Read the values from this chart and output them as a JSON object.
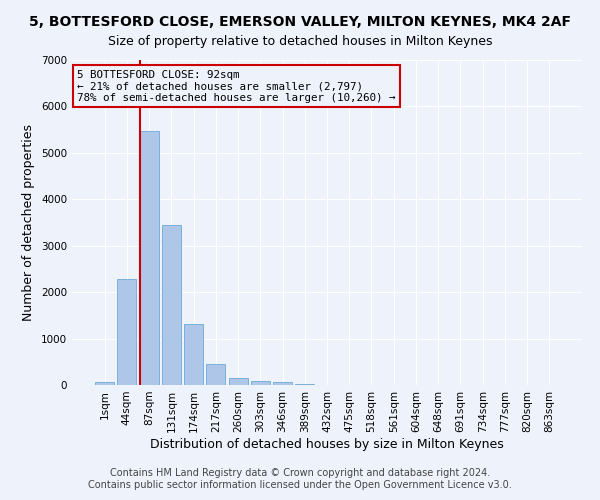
{
  "title": "5, BOTTESFORD CLOSE, EMERSON VALLEY, MILTON KEYNES, MK4 2AF",
  "subtitle": "Size of property relative to detached houses in Milton Keynes",
  "xlabel": "Distribution of detached houses by size in Milton Keynes",
  "ylabel": "Number of detached properties",
  "footer_line1": "Contains HM Land Registry data © Crown copyright and database right 2024.",
  "footer_line2": "Contains public sector information licensed under the Open Government Licence v3.0.",
  "bin_labels": [
    "1sqm",
    "44sqm",
    "87sqm",
    "131sqm",
    "174sqm",
    "217sqm",
    "260sqm",
    "303sqm",
    "346sqm",
    "389sqm",
    "432sqm",
    "475sqm",
    "518sqm",
    "561sqm",
    "604sqm",
    "648sqm",
    "691sqm",
    "734sqm",
    "777sqm",
    "820sqm",
    "863sqm"
  ],
  "bar_heights": [
    70,
    2280,
    5470,
    3450,
    1320,
    460,
    150,
    90,
    60,
    30,
    10,
    5,
    2,
    1,
    0,
    0,
    0,
    0,
    0,
    0,
    0
  ],
  "bar_color": "#aec6e8",
  "bar_edge_color": "#5a9fd4",
  "highlight_bin_index": 2,
  "highlight_color": "#cc0000",
  "annotation_text": "5 BOTTESFORD CLOSE: 92sqm\n← 21% of detached houses are smaller (2,797)\n78% of semi-detached houses are larger (10,260) →",
  "ylim": [
    0,
    7000
  ],
  "yticks": [
    0,
    1000,
    2000,
    3000,
    4000,
    5000,
    6000,
    7000
  ],
  "bg_color": "#eef3fb",
  "grid_color": "#ffffff",
  "title_fontsize": 10,
  "subtitle_fontsize": 9,
  "axis_label_fontsize": 9,
  "tick_fontsize": 7.5,
  "footer_fontsize": 7
}
